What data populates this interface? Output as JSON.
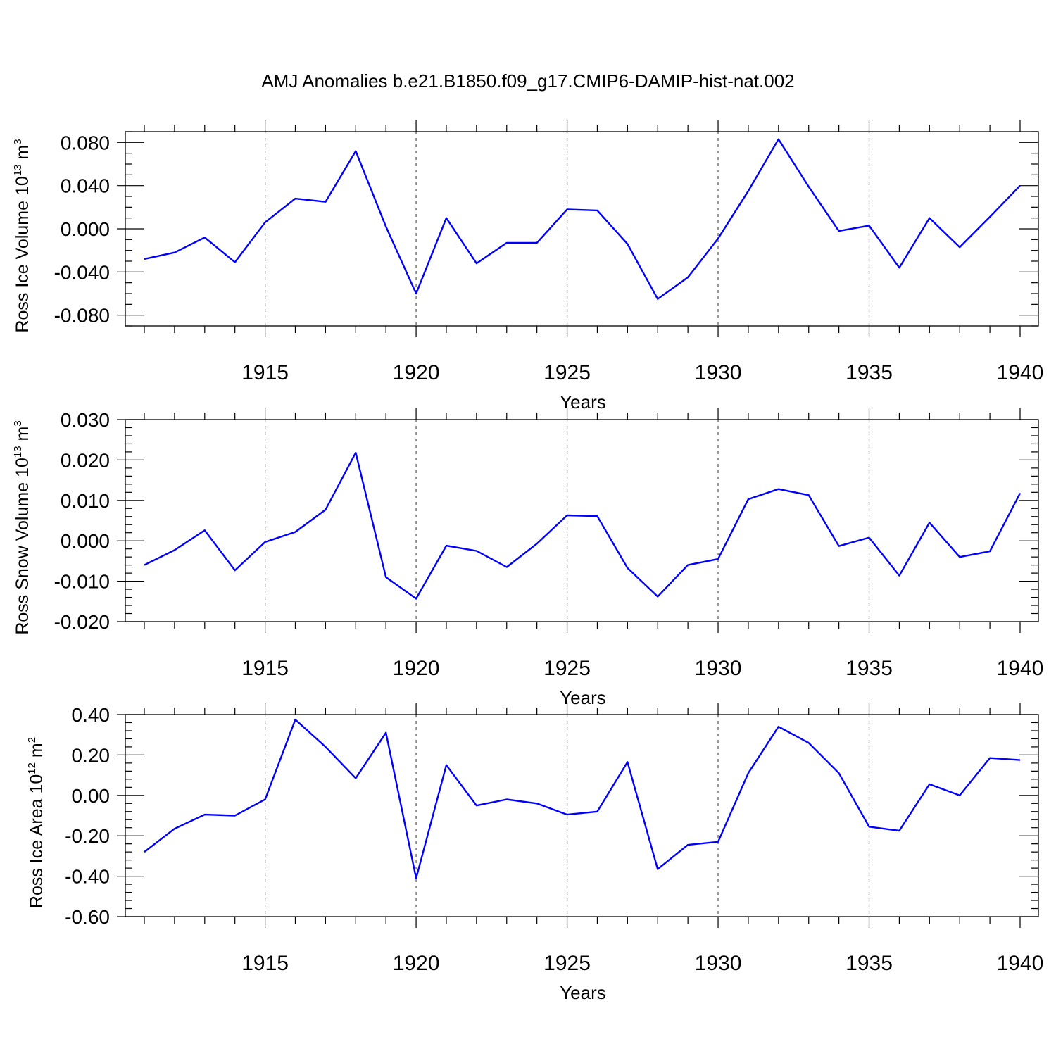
{
  "title": "AMJ Anomalies b.e21.B1850.f09_g17.CMIP6-DAMIP-hist-nat.002",
  "line_color": "#0000ff",
  "chart_data": [
    {
      "type": "line",
      "ylabel_main": "Ross Ice Volume 10",
      "ylabel_exp": "13",
      "ylabel_unit": " m",
      "ylabel_unit_exp": "3",
      "xlabel": "Years",
      "xlim": [
        1911,
        1940
      ],
      "ylim": [
        -0.09,
        0.09
      ],
      "yticks": [
        -0.08,
        -0.04,
        0.0,
        0.04,
        0.08
      ],
      "ytick_labels": [
        "-0.080",
        "-0.040",
        "0.000",
        "0.040",
        "0.080"
      ],
      "yminor_step": 0.01,
      "xticks": [
        1915,
        1920,
        1925,
        1930,
        1935,
        1940
      ],
      "xtick_labels": [
        "1915",
        "1920",
        "1925",
        "1930",
        "1935",
        "1940"
      ],
      "grid": "dashed vertical at major x ticks",
      "x": [
        1911,
        1912,
        1913,
        1914,
        1915,
        1916,
        1917,
        1918,
        1919,
        1920,
        1921,
        1922,
        1923,
        1924,
        1925,
        1926,
        1927,
        1928,
        1929,
        1930,
        1931,
        1932,
        1933,
        1934,
        1935,
        1936,
        1937,
        1938,
        1939,
        1940
      ],
      "values": [
        -0.028,
        -0.022,
        -0.008,
        -0.031,
        0.006,
        0.028,
        0.025,
        0.072,
        0.002,
        -0.06,
        0.01,
        -0.032,
        -0.013,
        -0.013,
        0.018,
        0.017,
        -0.014,
        -0.065,
        -0.045,
        -0.009,
        0.035,
        0.083,
        0.039,
        -0.002,
        0.003,
        -0.036,
        0.01,
        -0.017,
        0.011,
        0.04
      ]
    },
    {
      "type": "line",
      "ylabel_main": "Ross Snow Volume 10",
      "ylabel_exp": "13",
      "ylabel_unit": " m",
      "ylabel_unit_exp": "3",
      "xlabel": "Years",
      "xlim": [
        1911,
        1940
      ],
      "ylim": [
        -0.02,
        0.03
      ],
      "yticks": [
        -0.02,
        -0.01,
        0.0,
        0.01,
        0.02,
        0.03
      ],
      "ytick_labels": [
        "-0.020",
        "-0.010",
        "0.000",
        "0.010",
        "0.020",
        "0.030"
      ],
      "yminor_step": 0.002,
      "xticks": [
        1915,
        1920,
        1925,
        1930,
        1935,
        1940
      ],
      "xtick_labels": [
        "1915",
        "1920",
        "1925",
        "1930",
        "1935",
        "1940"
      ],
      "grid": "dashed vertical at major x ticks",
      "x": [
        1911,
        1912,
        1913,
        1914,
        1915,
        1916,
        1917,
        1918,
        1919,
        1920,
        1921,
        1922,
        1923,
        1924,
        1925,
        1926,
        1927,
        1928,
        1929,
        1930,
        1931,
        1932,
        1933,
        1934,
        1935,
        1936,
        1937,
        1938,
        1939,
        1940
      ],
      "values": [
        -0.006,
        -0.0023,
        0.0026,
        -0.0073,
        -0.0003,
        0.0022,
        0.0077,
        0.0218,
        -0.009,
        -0.0143,
        -0.0012,
        -0.0025,
        -0.0065,
        -0.0007,
        0.0063,
        0.0061,
        -0.0067,
        -0.0138,
        -0.006,
        -0.0045,
        0.0103,
        0.0128,
        0.0113,
        -0.0013,
        0.0008,
        -0.0086,
        0.0045,
        -0.004,
        -0.0026,
        0.0118
      ]
    },
    {
      "type": "line",
      "ylabel_main": "Ross Ice Area 10",
      "ylabel_exp": "12",
      "ylabel_unit": " m",
      "ylabel_unit_exp": "2",
      "xlabel": "Years",
      "xlim": [
        1911,
        1940
      ],
      "ylim": [
        -0.6,
        0.4
      ],
      "yticks": [
        -0.6,
        -0.4,
        -0.2,
        0.0,
        0.2,
        0.4
      ],
      "ytick_labels": [
        "-0.60",
        "-0.40",
        "-0.20",
        "0.00",
        "0.20",
        "0.40"
      ],
      "yminor_step": 0.04,
      "xticks": [
        1915,
        1920,
        1925,
        1930,
        1935,
        1940
      ],
      "xtick_labels": [
        "1915",
        "1920",
        "1925",
        "1930",
        "1935",
        "1940"
      ],
      "grid": "dashed vertical at major x ticks",
      "x": [
        1911,
        1912,
        1913,
        1914,
        1915,
        1916,
        1917,
        1918,
        1919,
        1920,
        1921,
        1922,
        1923,
        1924,
        1925,
        1926,
        1927,
        1928,
        1929,
        1930,
        1931,
        1932,
        1933,
        1934,
        1935,
        1936,
        1937,
        1938,
        1939,
        1940
      ],
      "values": [
        -0.28,
        -0.165,
        -0.095,
        -0.1,
        -0.02,
        0.375,
        0.24,
        0.085,
        0.31,
        -0.41,
        0.15,
        -0.05,
        -0.02,
        -0.04,
        -0.095,
        -0.08,
        0.165,
        -0.365,
        -0.245,
        -0.23,
        0.11,
        0.34,
        0.26,
        0.11,
        -0.155,
        -0.175,
        0.055,
        0.0,
        0.185,
        0.175
      ]
    }
  ]
}
